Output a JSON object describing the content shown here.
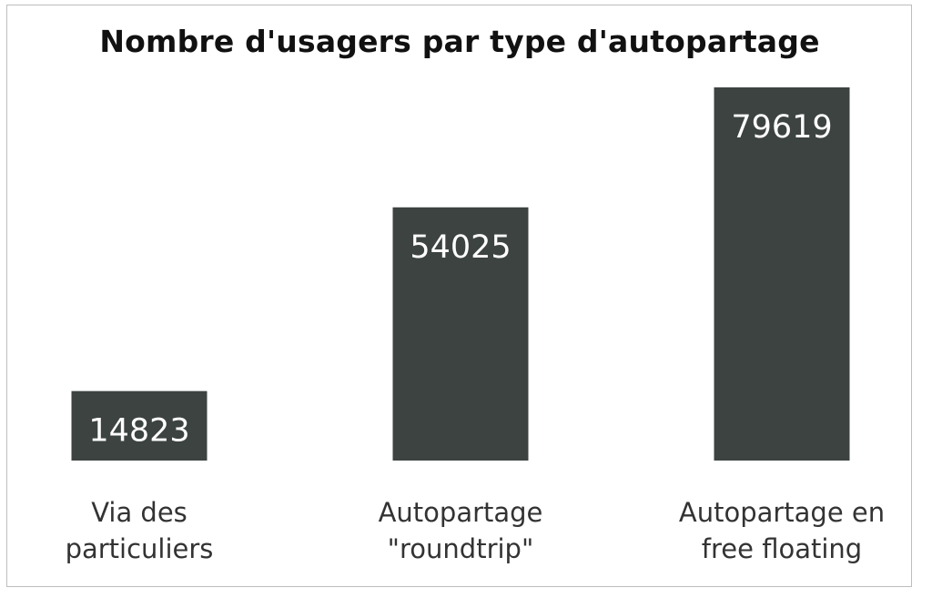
{
  "chart_data": {
    "type": "bar",
    "title": "Nombre d'usagers par type d'autopartage",
    "categories": [
      [
        "Via des",
        "particuliers"
      ],
      [
        "Autopartage",
        "\"roundtrip\""
      ],
      [
        "Autopartage en",
        "free floating"
      ]
    ],
    "values": [
      14823,
      54025,
      79619
    ],
    "data_labels": [
      "14823",
      "54025",
      "79619"
    ],
    "bar_color": "#3c4341",
    "ylim": [
      0,
      80000
    ],
    "grid": false,
    "legend": "none",
    "xlabel": "",
    "ylabel": ""
  }
}
